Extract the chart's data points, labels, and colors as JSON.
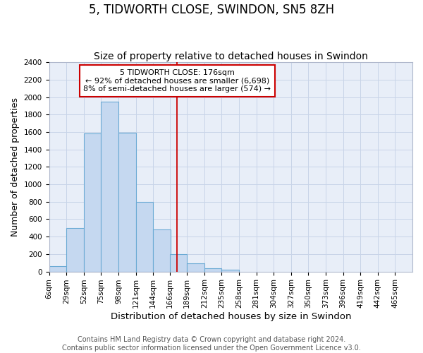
{
  "title": "5, TIDWORTH CLOSE, SWINDON, SN5 8ZH",
  "subtitle": "Size of property relative to detached houses in Swindon",
  "xlabel": "Distribution of detached houses by size in Swindon",
  "ylabel": "Number of detached properties",
  "footer_line1": "Contains HM Land Registry data © Crown copyright and database right 2024.",
  "footer_line2": "Contains public sector information licensed under the Open Government Licence v3.0.",
  "bin_labels": [
    "6sqm",
    "29sqm",
    "52sqm",
    "75sqm",
    "98sqm",
    "121sqm",
    "144sqm",
    "166sqm",
    "189sqm",
    "212sqm",
    "235sqm",
    "258sqm",
    "281sqm",
    "304sqm",
    "327sqm",
    "350sqm",
    "373sqm",
    "396sqm",
    "419sqm",
    "442sqm",
    "465sqm"
  ],
  "bin_edges": [
    6,
    29,
    52,
    75,
    98,
    121,
    144,
    166,
    189,
    212,
    235,
    258,
    281,
    304,
    327,
    350,
    373,
    396,
    419,
    442,
    465
  ],
  "bar_heights": [
    60,
    500,
    1580,
    1950,
    1590,
    800,
    480,
    200,
    90,
    35,
    25,
    0,
    0,
    0,
    0,
    0,
    0,
    0,
    0,
    0
  ],
  "bar_color": "#c5d8f0",
  "bar_edgecolor": "#6aaad4",
  "grid_color": "#c8d4e8",
  "background_color": "#e8eef8",
  "vline_x": 176,
  "vline_color": "#cc0000",
  "annotation_text": "5 TIDWORTH CLOSE: 176sqm\n← 92% of detached houses are smaller (6,698)\n8% of semi-detached houses are larger (574) →",
  "annotation_box_color": "#cc0000",
  "ylim": [
    0,
    2400
  ],
  "yticks": [
    0,
    200,
    400,
    600,
    800,
    1000,
    1200,
    1400,
    1600,
    1800,
    2000,
    2200,
    2400
  ],
  "title_fontsize": 12,
  "subtitle_fontsize": 10,
  "xlabel_fontsize": 9.5,
  "ylabel_fontsize": 9,
  "tick_fontsize": 7.5,
  "annotation_fontsize": 8,
  "footer_fontsize": 7
}
